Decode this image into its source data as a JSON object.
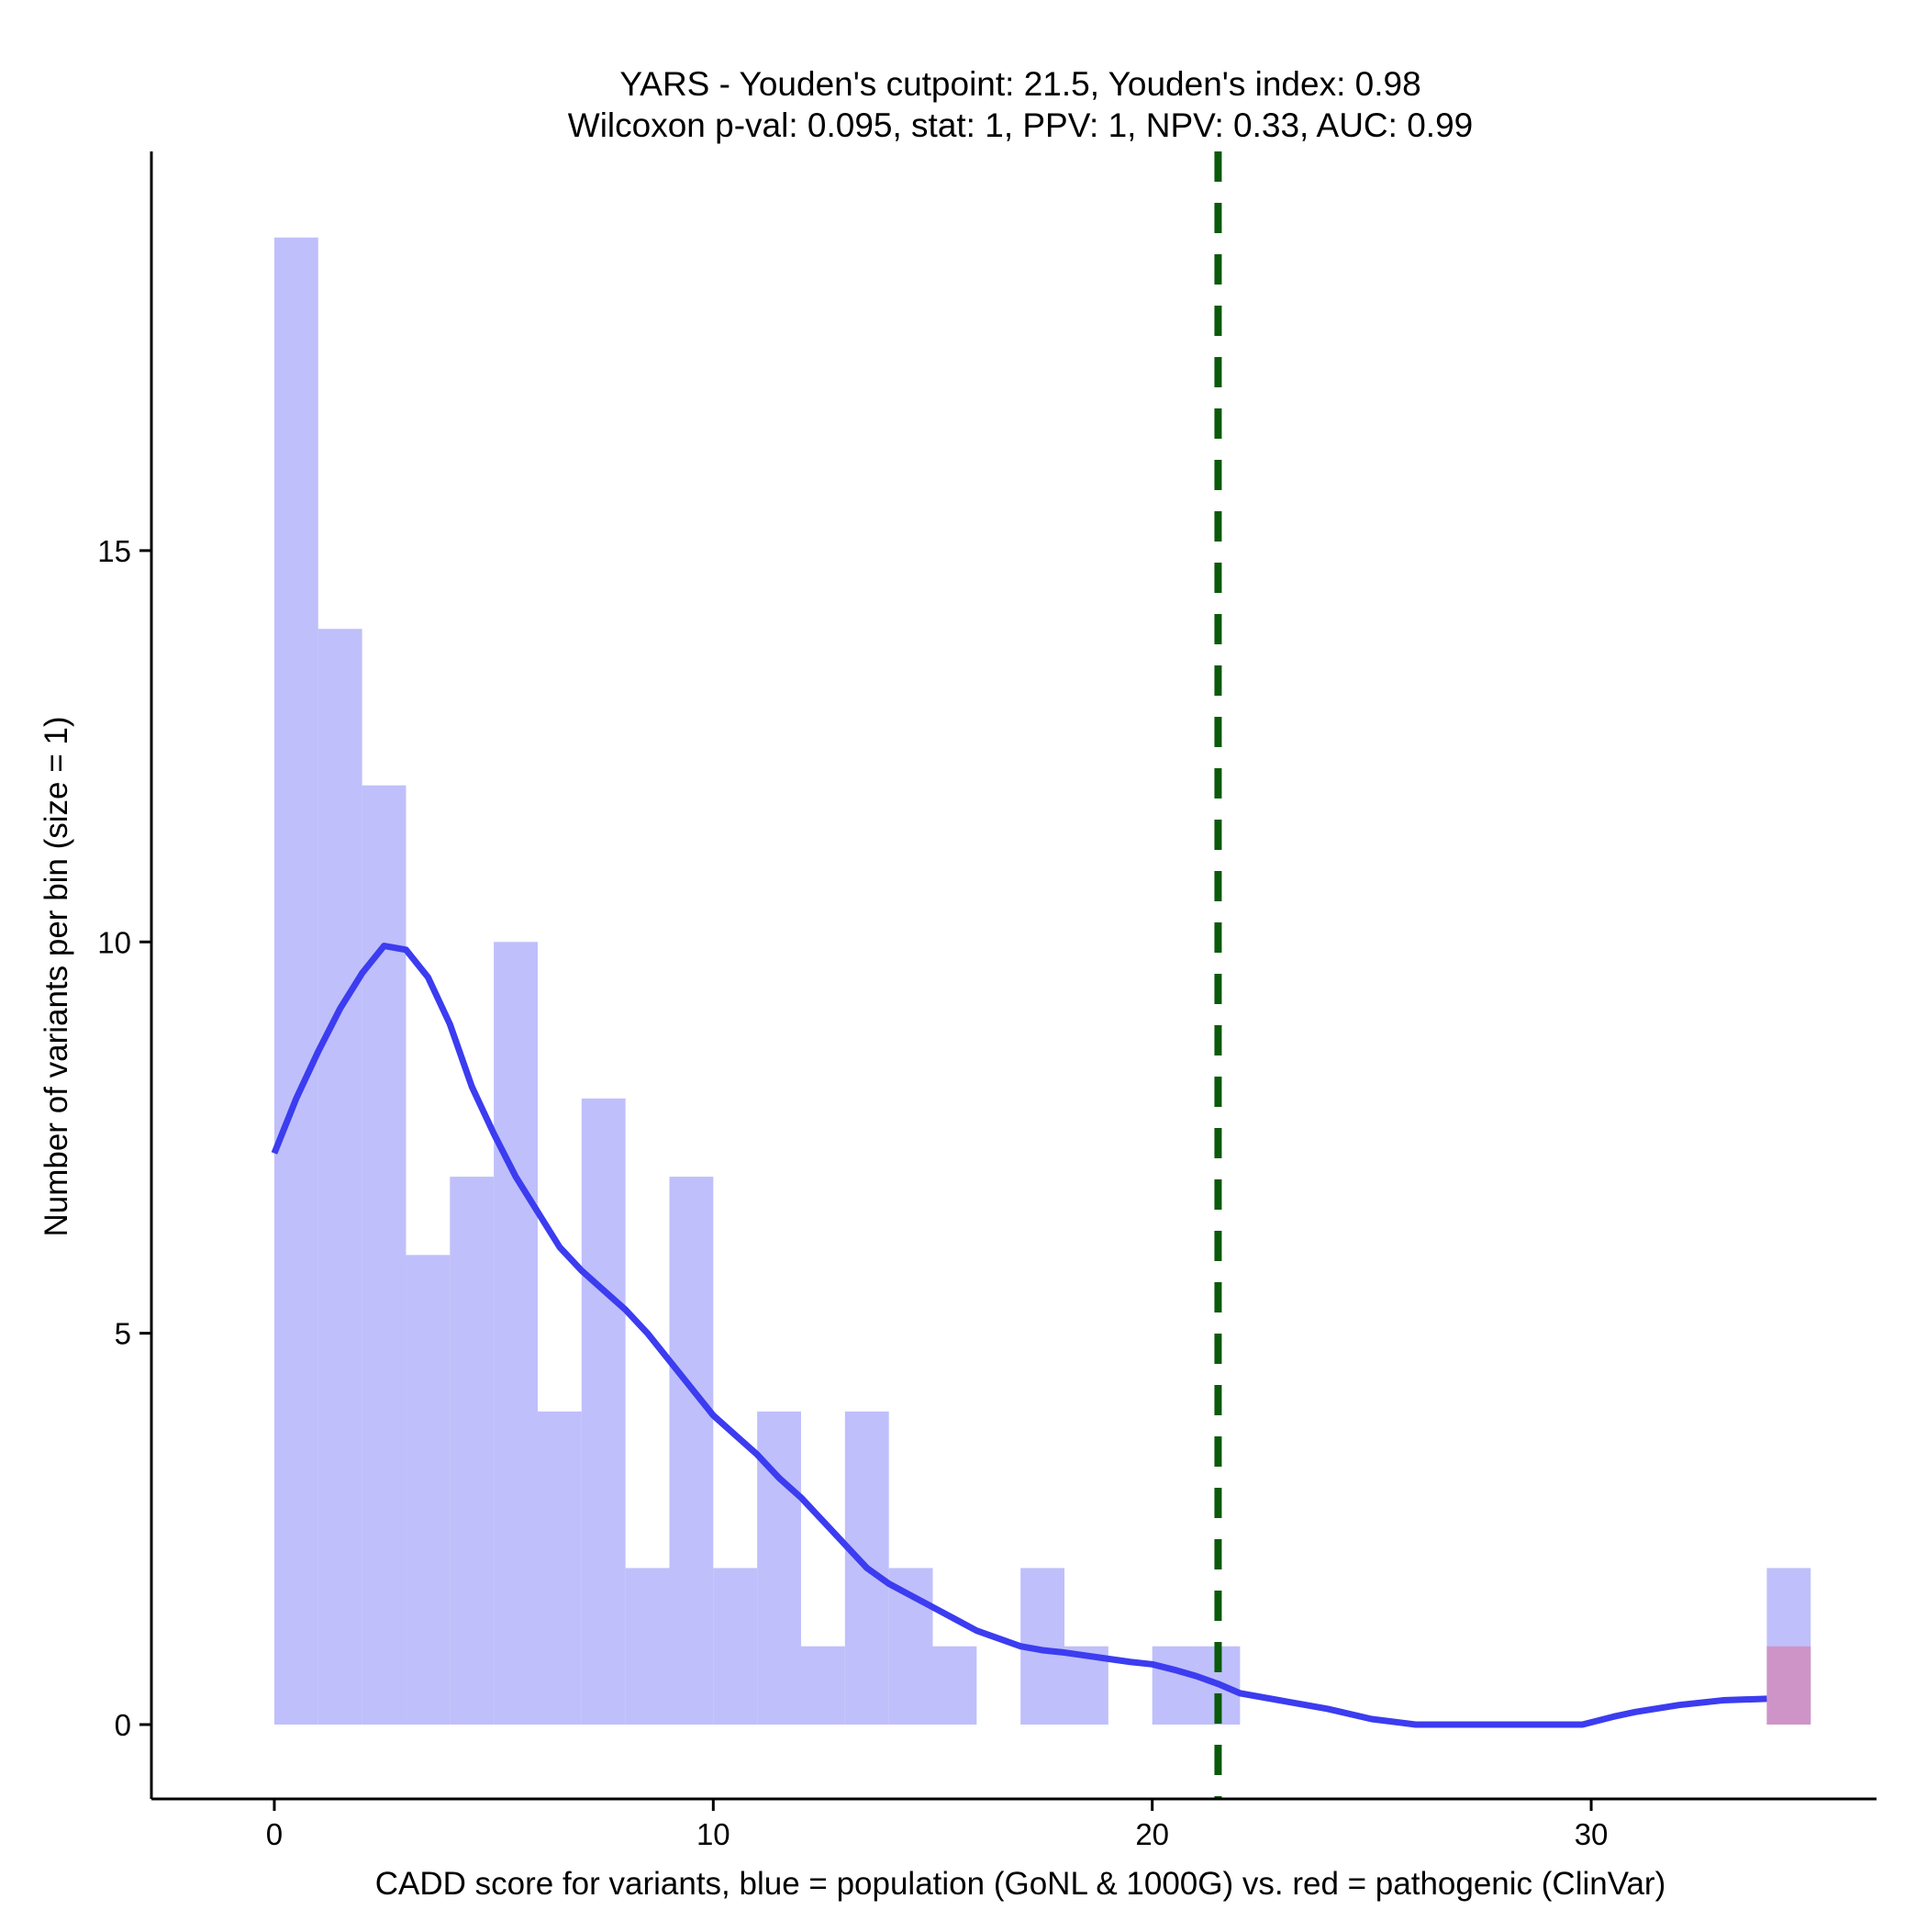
{
  "chart_data": {
    "type": "histogram",
    "title_line1": "YARS - Youden's cutpoint: 21.5, Youden's index: 0.98",
    "title_line2": "Wilcoxon p-val: 0.095, stat: 1, PPV: 1, NPV: 0.33, AUC: 0.99",
    "xlabel": "CADD score for variants, blue = population (GoNL & 1000G) vs. red = pathogenic (ClinVar)",
    "ylabel": "Number of variants per bin (size = 1)",
    "xlim": [
      -2.8,
      36.5
    ],
    "ylim": [
      -0.95,
      20.1
    ],
    "x_ticks": [
      {
        "value": 0,
        "label": "0"
      },
      {
        "value": 10,
        "label": "10"
      },
      {
        "value": 20,
        "label": "20"
      },
      {
        "value": 30,
        "label": "30"
      }
    ],
    "y_ticks": [
      {
        "value": 0,
        "label": "0"
      },
      {
        "value": 5,
        "label": "5"
      },
      {
        "value": 10,
        "label": "10"
      },
      {
        "value": 15,
        "label": "15"
      }
    ],
    "bin_size": 1,
    "colors": {
      "population": "#bfbffb",
      "pathogenic": "#cf94c7",
      "density": "#3c3cf0",
      "cutpoint": "#0a5a0a",
      "axis": "#000000"
    },
    "series": [
      {
        "name": "population",
        "bins": [
          {
            "start": 0,
            "count": 19
          },
          {
            "start": 1,
            "count": 14
          },
          {
            "start": 2,
            "count": 12
          },
          {
            "start": 3,
            "count": 6
          },
          {
            "start": 4,
            "count": 7
          },
          {
            "start": 5,
            "count": 10
          },
          {
            "start": 6,
            "count": 4
          },
          {
            "start": 7,
            "count": 8
          },
          {
            "start": 8,
            "count": 2
          },
          {
            "start": 9,
            "count": 7
          },
          {
            "start": 10,
            "count": 2
          },
          {
            "start": 11,
            "count": 4
          },
          {
            "start": 12,
            "count": 1
          },
          {
            "start": 13,
            "count": 4
          },
          {
            "start": 14,
            "count": 2
          },
          {
            "start": 15,
            "count": 1
          },
          {
            "start": 17,
            "count": 2
          },
          {
            "start": 18,
            "count": 1
          },
          {
            "start": 20,
            "count": 1
          },
          {
            "start": 21,
            "count": 1
          },
          {
            "start": 34,
            "count": 2
          }
        ]
      },
      {
        "name": "pathogenic",
        "bins": [
          {
            "start": 34,
            "count": 1
          }
        ]
      }
    ],
    "density_curve": {
      "x": [
        0,
        0.5,
        1,
        1.5,
        2,
        2.5,
        3,
        3.5,
        4,
        4.5,
        5,
        5.5,
        6,
        6.5,
        7,
        7.5,
        8,
        8.5,
        9,
        9.5,
        10,
        10.5,
        11,
        11.5,
        12,
        12.5,
        13,
        13.5,
        14,
        14.5,
        15,
        15.5,
        16,
        16.5,
        17,
        17.5,
        18,
        18.5,
        19,
        19.5,
        20,
        20.5,
        21,
        21.5,
        22,
        23,
        24,
        25,
        26,
        27,
        28,
        29,
        29.8,
        30.5,
        31,
        32,
        33,
        34
      ],
      "y": [
        7.3,
        8.0,
        8.6,
        9.15,
        9.6,
        9.95,
        9.9,
        9.55,
        8.95,
        8.15,
        7.55,
        7.0,
        6.55,
        6.1,
        5.8,
        5.55,
        5.3,
        5.0,
        4.65,
        4.3,
        3.95,
        3.7,
        3.45,
        3.15,
        2.9,
        2.6,
        2.3,
        2.0,
        1.8,
        1.65,
        1.5,
        1.35,
        1.2,
        1.1,
        1.0,
        0.95,
        0.92,
        0.88,
        0.84,
        0.8,
        0.77,
        0.7,
        0.62,
        0.52,
        0.4,
        0.3,
        0.2,
        0.07,
        0.0,
        0.0,
        0.0,
        0.0,
        0.0,
        0.1,
        0.16,
        0.25,
        0.31,
        0.33
      ]
    },
    "cutpoint": {
      "x": 21.5
    }
  }
}
